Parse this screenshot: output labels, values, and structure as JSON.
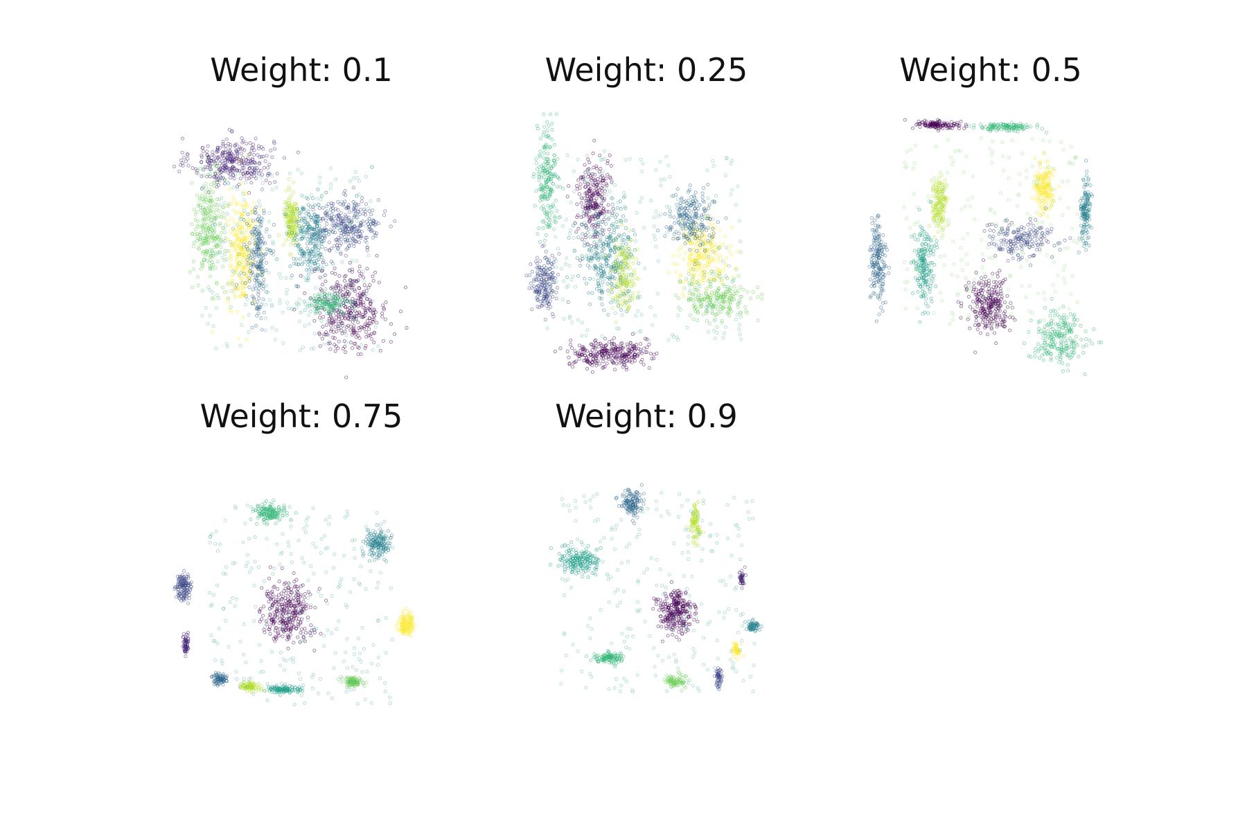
{
  "panels": [
    {
      "title": "Weight: 0.1"
    },
    {
      "title": "Weight: 0.25"
    },
    {
      "title": "Weight: 0.5"
    },
    {
      "title": "Weight: 0.75"
    },
    {
      "title": "Weight: 0.9"
    }
  ],
  "colors": {
    "colormap": "viridis",
    "cluster_palette": [
      "#440154",
      "#482878",
      "#3e4989",
      "#31688e",
      "#26828e",
      "#1f9e89",
      "#35b779",
      "#6ece58",
      "#b5de2b",
      "#fde725"
    ],
    "background": "#ffffff",
    "title_text": "#111111"
  },
  "chart_data": {
    "type": "scatter",
    "grid": false,
    "axes_visible": false,
    "legend": "none",
    "panels": [
      {
        "title": "Weight: 0.1",
        "clusters": [
          {
            "color": "#482878",
            "center": [
              0.23,
              0.82
            ],
            "spread": [
              0.16,
              0.09
            ],
            "shape": "arc",
            "n": 320
          },
          {
            "color": "#440154",
            "center": [
              0.69,
              0.26
            ],
            "spread": [
              0.15,
              0.16
            ],
            "shape": "blob",
            "n": 360
          },
          {
            "color": "#3e4989",
            "center": [
              0.68,
              0.58
            ],
            "spread": [
              0.13,
              0.1
            ],
            "shape": "blob",
            "n": 280
          },
          {
            "color": "#6ece58",
            "center": [
              0.14,
              0.57
            ],
            "spread": [
              0.06,
              0.2
            ],
            "shape": "band",
            "n": 260
          },
          {
            "color": "#fde725",
            "center": [
              0.27,
              0.48
            ],
            "spread": [
              0.06,
              0.22
            ],
            "shape": "band",
            "n": 260
          },
          {
            "color": "#31688e",
            "center": [
              0.33,
              0.44
            ],
            "spread": [
              0.04,
              0.2
            ],
            "shape": "band",
            "n": 200
          },
          {
            "color": "#b5de2b",
            "center": [
              0.46,
              0.6
            ],
            "spread": [
              0.03,
              0.12
            ],
            "shape": "band",
            "n": 160
          },
          {
            "color": "#26828e",
            "center": [
              0.53,
              0.52
            ],
            "spread": [
              0.07,
              0.15
            ],
            "shape": "blob",
            "n": 220
          },
          {
            "color": "#35b779",
            "center": [
              0.6,
              0.28
            ],
            "spread": [
              0.09,
              0.04
            ],
            "shape": "band",
            "n": 140
          },
          {
            "color": "#1f9e89",
            "center": [
              0.45,
              0.45
            ],
            "spread": [
              0.35,
              0.35
            ],
            "shape": "diffuse",
            "n": 260
          }
        ]
      },
      {
        "title": "Weight: 0.25",
        "clusters": [
          {
            "color": "#35b779",
            "center": [
              0.12,
              0.76
            ],
            "spread": [
              0.04,
              0.2
            ],
            "shape": "band",
            "n": 200
          },
          {
            "color": "#440154",
            "center": [
              0.3,
              0.68
            ],
            "spread": [
              0.06,
              0.16
            ],
            "shape": "band",
            "n": 240
          },
          {
            "color": "#3e4989",
            "center": [
              0.11,
              0.36
            ],
            "spread": [
              0.05,
              0.11
            ],
            "shape": "blob",
            "n": 180
          },
          {
            "color": "#440154",
            "center": [
              0.36,
              0.09
            ],
            "spread": [
              0.15,
              0.05
            ],
            "shape": "arc",
            "n": 280
          },
          {
            "color": "#26828e",
            "center": [
              0.36,
              0.46
            ],
            "spread": [
              0.11,
              0.17
            ],
            "shape": "blob",
            "n": 280
          },
          {
            "color": "#b5de2b",
            "center": [
              0.42,
              0.4
            ],
            "spread": [
              0.05,
              0.14
            ],
            "shape": "band",
            "n": 160
          },
          {
            "color": "#fde725",
            "center": [
              0.73,
              0.47
            ],
            "spread": [
              0.1,
              0.12
            ],
            "shape": "band",
            "n": 240
          },
          {
            "color": "#6ece58",
            "center": [
              0.78,
              0.3
            ],
            "spread": [
              0.14,
              0.08
            ],
            "shape": "arc",
            "n": 220
          },
          {
            "color": "#31688e",
            "center": [
              0.68,
              0.6
            ],
            "spread": [
              0.09,
              0.1
            ],
            "shape": "blob",
            "n": 200
          },
          {
            "color": "#1f9e89",
            "center": [
              0.5,
              0.5
            ],
            "spread": [
              0.38,
              0.36
            ],
            "shape": "diffuse",
            "n": 260
          }
        ]
      },
      {
        "title": "Weight: 0.5",
        "clusters": [
          {
            "color": "#440154",
            "center": [
              0.3,
              0.96
            ],
            "spread": [
              0.09,
              0.015
            ],
            "shape": "band",
            "n": 120
          },
          {
            "color": "#35b779",
            "center": [
              0.56,
              0.95
            ],
            "spread": [
              0.1,
              0.015
            ],
            "shape": "band",
            "n": 120
          },
          {
            "color": "#fde725",
            "center": [
              0.71,
              0.72
            ],
            "spread": [
              0.04,
              0.09
            ],
            "shape": "band",
            "n": 160
          },
          {
            "color": "#26828e",
            "center": [
              0.87,
              0.63
            ],
            "spread": [
              0.02,
              0.13
            ],
            "shape": "band",
            "n": 140
          },
          {
            "color": "#b5de2b",
            "center": [
              0.3,
              0.66
            ],
            "spread": [
              0.03,
              0.1
            ],
            "shape": "band",
            "n": 150
          },
          {
            "color": "#31688e",
            "center": [
              0.06,
              0.45
            ],
            "spread": [
              0.03,
              0.16
            ],
            "shape": "band",
            "n": 180
          },
          {
            "color": "#1f9e89",
            "center": [
              0.24,
              0.42
            ],
            "spread": [
              0.04,
              0.16
            ],
            "shape": "band",
            "n": 180
          },
          {
            "color": "#3e4989",
            "center": [
              0.61,
              0.52
            ],
            "spread": [
              0.14,
              0.07
            ],
            "shape": "band",
            "n": 180
          },
          {
            "color": "#440154",
            "center": [
              0.49,
              0.27
            ],
            "spread": [
              0.08,
              0.11
            ],
            "shape": "blob",
            "n": 260
          },
          {
            "color": "#35b779",
            "center": [
              0.77,
              0.15
            ],
            "spread": [
              0.11,
              0.1
            ],
            "shape": "blob",
            "n": 220
          },
          {
            "color": "#6ece58",
            "center": [
              0.5,
              0.55
            ],
            "spread": [
              0.34,
              0.36
            ],
            "shape": "diffuse",
            "n": 240
          }
        ]
      },
      {
        "title": "Weight: 0.75",
        "clusters": [
          {
            "color": "#35b779",
            "center": [
              0.37,
              0.8
            ],
            "spread": [
              0.06,
              0.03
            ],
            "shape": "blob",
            "n": 140
          },
          {
            "color": "#26828e",
            "center": [
              0.8,
              0.68
            ],
            "spread": [
              0.05,
              0.05
            ],
            "shape": "blob",
            "n": 150
          },
          {
            "color": "#3e4989",
            "center": [
              0.04,
              0.52
            ],
            "spread": [
              0.03,
              0.05
            ],
            "shape": "blob",
            "n": 130
          },
          {
            "color": "#440154",
            "center": [
              0.44,
              0.43
            ],
            "spread": [
              0.1,
              0.11
            ],
            "shape": "blob",
            "n": 300
          },
          {
            "color": "#fde725",
            "center": [
              0.91,
              0.38
            ],
            "spread": [
              0.03,
              0.04
            ],
            "shape": "blob",
            "n": 120
          },
          {
            "color": "#482878",
            "center": [
              0.05,
              0.3
            ],
            "spread": [
              0.01,
              0.04
            ],
            "shape": "band",
            "n": 60
          },
          {
            "color": "#31688e",
            "center": [
              0.18,
              0.17
            ],
            "spread": [
              0.03,
              0.02
            ],
            "shape": "blob",
            "n": 80
          },
          {
            "color": "#b5de2b",
            "center": [
              0.3,
              0.14
            ],
            "spread": [
              0.04,
              0.015
            ],
            "shape": "band",
            "n": 80
          },
          {
            "color": "#1f9e89",
            "center": [
              0.43,
              0.13
            ],
            "spread": [
              0.06,
              0.015
            ],
            "shape": "band",
            "n": 100
          },
          {
            "color": "#6ece58",
            "center": [
              0.7,
              0.16
            ],
            "spread": [
              0.04,
              0.02
            ],
            "shape": "blob",
            "n": 90
          },
          {
            "color": "#21918c",
            "center": [
              0.5,
              0.45
            ],
            "spread": [
              0.36,
              0.38
            ],
            "shape": "diffuse",
            "n": 260
          }
        ]
      },
      {
        "title": "Weight: 0.9",
        "clusters": [
          {
            "color": "#31688e",
            "center": [
              0.45,
              0.83
            ],
            "spread": [
              0.04,
              0.06
            ],
            "shape": "blob",
            "n": 130
          },
          {
            "color": "#b5de2b",
            "center": [
              0.7,
              0.76
            ],
            "spread": [
              0.02,
              0.07
            ],
            "shape": "band",
            "n": 90
          },
          {
            "color": "#1f9e89",
            "center": [
              0.24,
              0.62
            ],
            "spread": [
              0.08,
              0.05
            ],
            "shape": "blob",
            "n": 180
          },
          {
            "color": "#440154",
            "center": [
              0.62,
              0.43
            ],
            "spread": [
              0.07,
              0.08
            ],
            "shape": "blob",
            "n": 260
          },
          {
            "color": "#482878",
            "center": [
              0.88,
              0.55
            ],
            "spread": [
              0.012,
              0.03
            ],
            "shape": "blob",
            "n": 40
          },
          {
            "color": "#26828e",
            "center": [
              0.92,
              0.37
            ],
            "spread": [
              0.03,
              0.02
            ],
            "shape": "blob",
            "n": 60
          },
          {
            "color": "#fde725",
            "center": [
              0.86,
              0.28
            ],
            "spread": [
              0.015,
              0.03
            ],
            "shape": "blob",
            "n": 40
          },
          {
            "color": "#3e4989",
            "center": [
              0.79,
              0.17
            ],
            "spread": [
              0.015,
              0.04
            ],
            "shape": "blob",
            "n": 50
          },
          {
            "color": "#6ece58",
            "center": [
              0.62,
              0.16
            ],
            "spread": [
              0.04,
              0.025
            ],
            "shape": "blob",
            "n": 80
          },
          {
            "color": "#35b779",
            "center": [
              0.36,
              0.25
            ],
            "spread": [
              0.06,
              0.02
            ],
            "shape": "band",
            "n": 110
          },
          {
            "color": "#1f9e89",
            "center": [
              0.55,
              0.5
            ],
            "spread": [
              0.38,
              0.38
            ],
            "shape": "diffuse",
            "n": 240
          }
        ]
      }
    ]
  }
}
